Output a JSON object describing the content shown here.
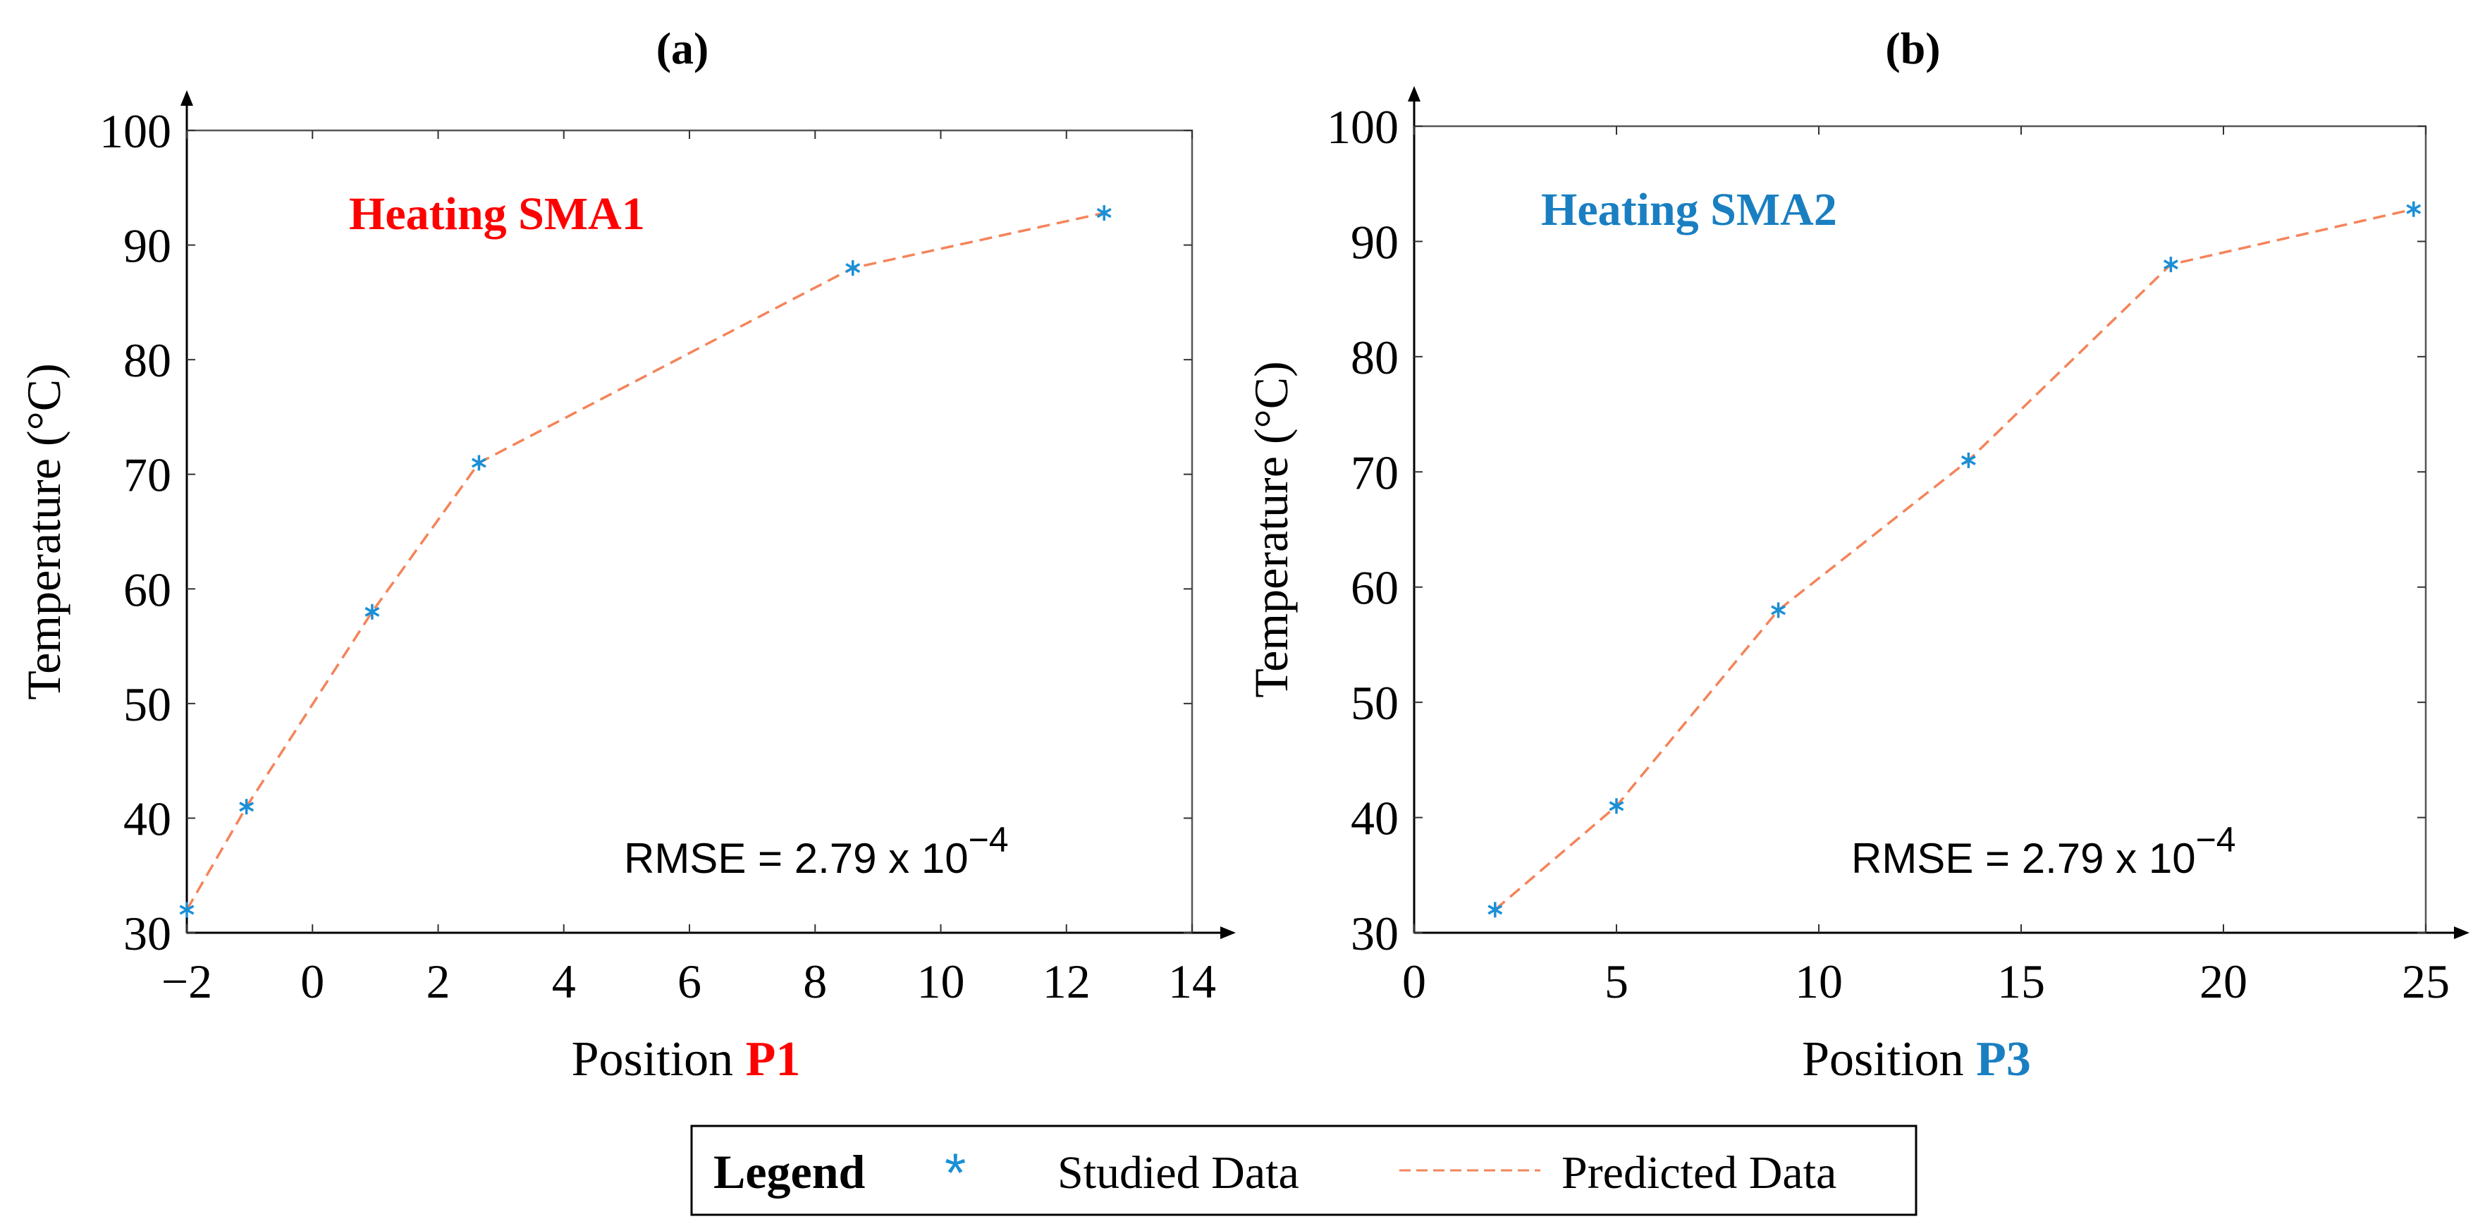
{
  "colors": {
    "studied": "#1a8fd6",
    "predicted": "#f4845a",
    "red": "#ff0000",
    "blue": "#1a7fc1",
    "axis": "#000000"
  },
  "legend": {
    "title": "Legend",
    "studied_symbol": "*",
    "studied_label": "Studied Data",
    "predicted_label": "Predicted Data"
  },
  "chart_data": [
    {
      "type": "line",
      "panel_label": "(a)",
      "annotation": "Heating SMA1",
      "annotation_color": "#ff0000",
      "rmse_text": "RMSE = 2.79  x 10",
      "rmse_exp": "−4",
      "xlabel": "Position ",
      "xlabel_highlight": "P1",
      "ylabel": "Temperature (°C)",
      "xlim": [
        -2,
        14
      ],
      "ylim": [
        30,
        100
      ],
      "xticks": [
        -2,
        0,
        2,
        4,
        6,
        8,
        10,
        12,
        14
      ],
      "xtick_labels": [
        "−2",
        "0",
        "2",
        "4",
        "6",
        "8",
        "10",
        "12",
        "14"
      ],
      "yticks": [
        30,
        40,
        50,
        60,
        70,
        80,
        90,
        100
      ],
      "ytick_labels": [
        "30",
        "40",
        "50",
        "60",
        "70",
        "80",
        "90",
        "100"
      ],
      "series": [
        {
          "name": "Studied Data",
          "style": "marker-asterisk",
          "x": [
            -2,
            -1.05,
            0.95,
            2.65,
            8.6,
            12.6
          ],
          "y": [
            32,
            41,
            58,
            71,
            88,
            92.8
          ]
        },
        {
          "name": "Predicted Data",
          "style": "dashed-line",
          "x": [
            -2,
            -1.05,
            0.95,
            2.65,
            8.6,
            12.6
          ],
          "y": [
            32,
            41,
            58,
            71,
            88,
            92.8
          ]
        }
      ]
    },
    {
      "type": "line",
      "panel_label": "(b)",
      "annotation": "Heating SMA2",
      "annotation_color": "#1a7fc1",
      "rmse_text": "RMSE = 2.79  x 10",
      "rmse_exp": "−4",
      "xlabel": "Position ",
      "xlabel_highlight": "P3",
      "ylabel": "Temperature (°C)",
      "xlim": [
        0,
        25
      ],
      "ylim": [
        30,
        100
      ],
      "xticks": [
        0,
        5,
        10,
        15,
        20,
        25
      ],
      "xtick_labels": [
        "0",
        "5",
        "10",
        "15",
        "20",
        "25"
      ],
      "yticks": [
        30,
        40,
        50,
        60,
        70,
        80,
        90,
        100
      ],
      "ytick_labels": [
        "30",
        "40",
        "50",
        "60",
        "70",
        "80",
        "90",
        "100"
      ],
      "series": [
        {
          "name": "Studied Data",
          "style": "marker-asterisk",
          "x": [
            2,
            5,
            9,
            13.7,
            18.7,
            24.7
          ],
          "y": [
            32,
            41,
            58,
            71,
            88,
            92.8
          ]
        },
        {
          "name": "Predicted Data",
          "style": "dashed-line",
          "x": [
            2,
            5,
            9,
            13.7,
            18.7,
            24.7
          ],
          "y": [
            32,
            41,
            58,
            71,
            88,
            92.8
          ]
        }
      ]
    }
  ]
}
